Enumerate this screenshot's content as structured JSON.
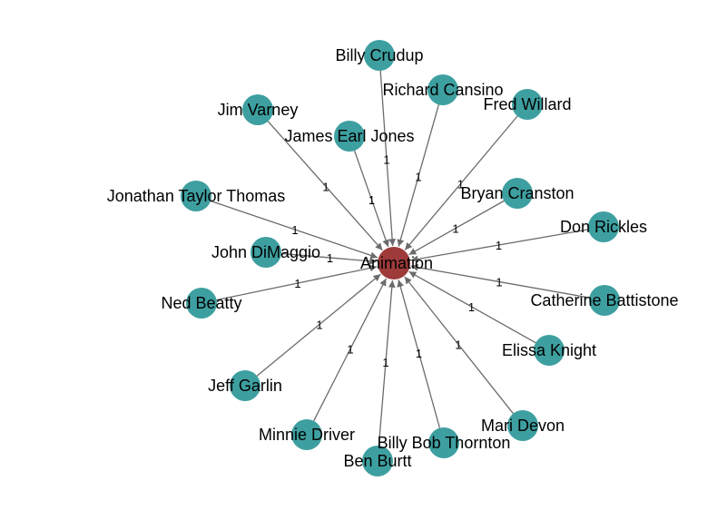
{
  "colors": {
    "center_node": "#9e3a3a",
    "outer_node": "#3e9fa0",
    "edge": "#6b6b6b",
    "background": "#ffffff"
  },
  "graph": {
    "center": {
      "id": "animation",
      "label": "Animation"
    },
    "nodes": [
      {
        "id": "billy-crudup",
        "label": "Billy Crudup",
        "edge_weight": "1"
      },
      {
        "id": "richard-cansino",
        "label": "Richard Cansino",
        "edge_weight": "1"
      },
      {
        "id": "fred-willard",
        "label": "Fred Willard",
        "edge_weight": "1"
      },
      {
        "id": "jim-varney",
        "label": "Jim Varney",
        "edge_weight": "1"
      },
      {
        "id": "james-earl-jones",
        "label": "James Earl Jones",
        "edge_weight": "1"
      },
      {
        "id": "bryan-cranston",
        "label": "Bryan Cranston",
        "edge_weight": "1"
      },
      {
        "id": "jonathan-taylor-thomas",
        "label": "Jonathan Taylor Thomas",
        "edge_weight": "1"
      },
      {
        "id": "don-rickles",
        "label": "Don Rickles",
        "edge_weight": "1"
      },
      {
        "id": "john-dimaggio",
        "label": "John DiMaggio",
        "edge_weight": "1"
      },
      {
        "id": "catherine-battistone",
        "label": "Catherine Battistone",
        "edge_weight": "1"
      },
      {
        "id": "ned-beatty",
        "label": "Ned Beatty",
        "edge_weight": "1"
      },
      {
        "id": "elissa-knight",
        "label": "Elissa Knight",
        "edge_weight": "1"
      },
      {
        "id": "jeff-garlin",
        "label": "Jeff Garlin",
        "edge_weight": "1"
      },
      {
        "id": "mari-devon",
        "label": "Mari Devon",
        "edge_weight": "1"
      },
      {
        "id": "minnie-driver",
        "label": "Minnie Driver",
        "edge_weight": "1"
      },
      {
        "id": "billy-bob-thornton",
        "label": "Billy Bob Thornton",
        "edge_weight": "1"
      },
      {
        "id": "ben-burtt",
        "label": "Ben Burtt",
        "edge_weight": "1"
      }
    ]
  }
}
